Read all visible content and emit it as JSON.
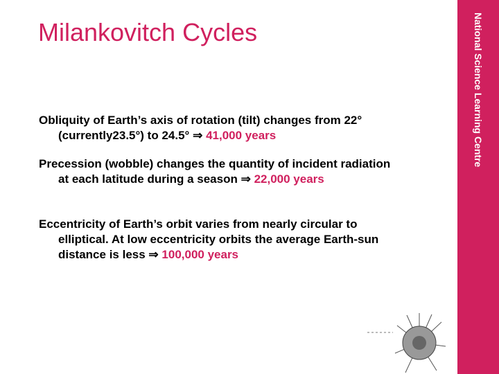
{
  "title": "Milankovitch Cycles",
  "sidebar": "National Science Learning Centre",
  "bullets": [
    {
      "text": "Obliquity of Earth’s axis of rotation (tilt) changes from 22° (currently23.5°) to 24.5°",
      "arrow": "⇒",
      "highlight": "41,000 years"
    },
    {
      "text": "Precession (wobble) changes the quantity of incident radiation at each latitude during a season",
      "arrow": "⇒",
      "highlight": "22,000 years"
    },
    {
      "text": "Eccentricity of Earth’s orbit varies from nearly circular to elliptical. At low eccentricity orbits the average Earth-sun distance is less",
      "arrow": "⇒",
      "highlight": "100,000 years"
    }
  ]
}
